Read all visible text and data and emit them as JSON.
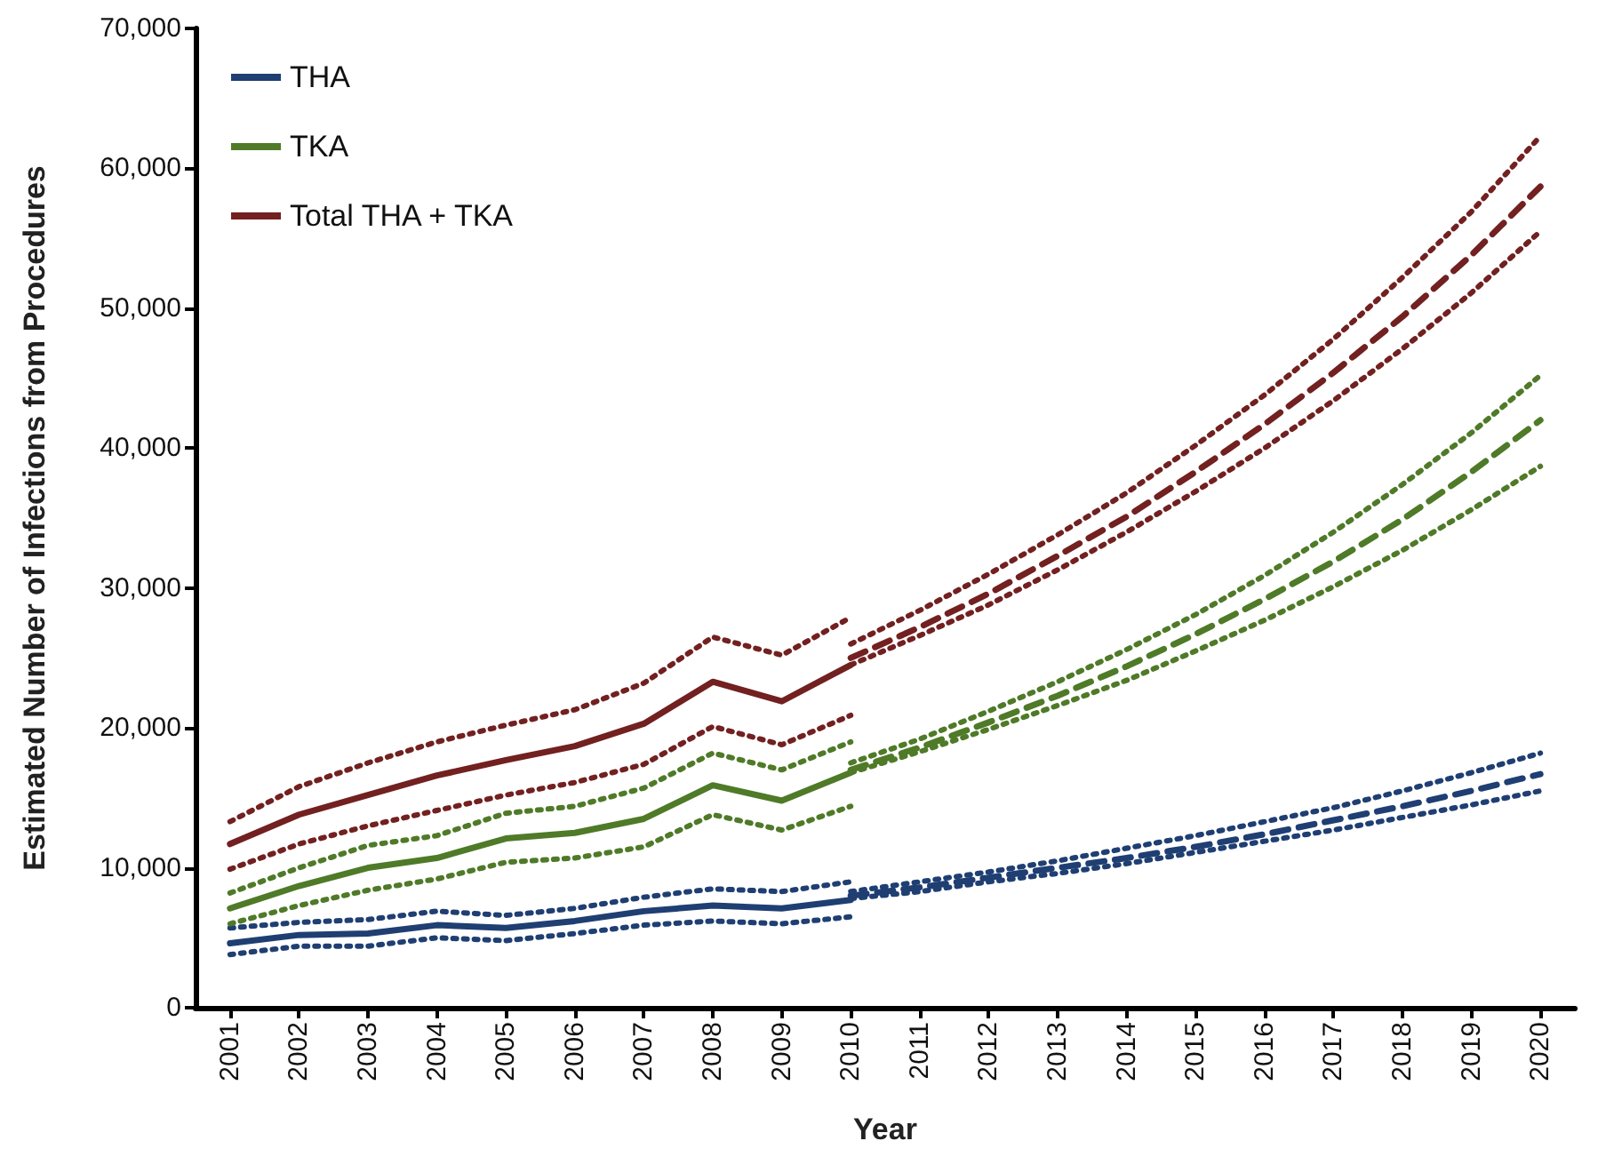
{
  "chart_data": {
    "type": "line",
    "xlabel": "Year",
    "ylabel": "Estimated Number of Infections from Procedures",
    "categories": [
      "2001",
      "2002",
      "2003",
      "2004",
      "2005",
      "2006",
      "2007",
      "2008",
      "2009",
      "2010",
      "2011",
      "2012",
      "2013",
      "2014",
      "2015",
      "2016",
      "2017",
      "2018",
      "2019",
      "2020"
    ],
    "ylim": [
      0,
      70000
    ],
    "yticks": [
      {
        "value": 0,
        "label": "0"
      },
      {
        "value": 10000,
        "label": "10,000"
      },
      {
        "value": 20000,
        "label": "20,000"
      },
      {
        "value": 30000,
        "label": "30,000"
      },
      {
        "value": 40000,
        "label": "40,000"
      },
      {
        "value": 50000,
        "label": "50,000"
      },
      {
        "value": 60000,
        "label": "60,000"
      },
      {
        "value": 70000,
        "label": "70,000"
      }
    ],
    "grid": false,
    "legend": "top left",
    "marker": "none",
    "series": [
      {
        "name": "THA",
        "color": "#1f3f73",
        "line_style": "solid",
        "values": [
          4600,
          5200,
          5300,
          5900,
          5700,
          6200,
          6900,
          7300,
          7100,
          7700,
          null,
          null,
          null,
          null,
          null,
          null,
          null,
          null,
          null,
          null
        ]
      },
      {
        "name": "TKA",
        "color": "#4f7a28",
        "line_style": "solid",
        "values": [
          7100,
          8700,
          10000,
          10700,
          12100,
          12500,
          13500,
          15900,
          14800,
          16800,
          null,
          null,
          null,
          null,
          null,
          null,
          null,
          null,
          null,
          null
        ]
      },
      {
        "name": "Total THA + TKA",
        "color": "#722020",
        "line_style": "solid",
        "values": [
          11700,
          13800,
          15200,
          16600,
          17700,
          18700,
          20300,
          23300,
          21900,
          24500,
          null,
          null,
          null,
          null,
          null,
          null,
          null,
          null,
          null,
          null
        ]
      },
      {
        "color": "#1f3f73",
        "line_style": "dotted",
        "values": [
          5700,
          6100,
          6300,
          6900,
          6600,
          7100,
          7900,
          8500,
          8300,
          9000,
          null,
          null,
          null,
          null,
          null,
          null,
          null,
          null,
          null,
          null
        ]
      },
      {
        "color": "#1f3f73",
        "line_style": "dotted",
        "values": [
          3800,
          4400,
          4400,
          5000,
          4800,
          5300,
          5900,
          6200,
          6000,
          6500,
          null,
          null,
          null,
          null,
          null,
          null,
          null,
          null,
          null,
          null
        ]
      },
      {
        "color": "#4f7a28",
        "line_style": "dotted",
        "values": [
          8200,
          10000,
          11600,
          12300,
          13900,
          14400,
          15700,
          18200,
          17000,
          19000,
          null,
          null,
          null,
          null,
          null,
          null,
          null,
          null,
          null,
          null
        ]
      },
      {
        "color": "#4f7a28",
        "line_style": "dotted",
        "values": [
          6000,
          7300,
          8400,
          9200,
          10400,
          10700,
          11500,
          13800,
          12700,
          14400,
          null,
          null,
          null,
          null,
          null,
          null,
          null,
          null,
          null,
          null
        ]
      },
      {
        "color": "#722020",
        "line_style": "dotted",
        "values": [
          13300,
          15800,
          17500,
          19000,
          20200,
          21300,
          23200,
          26500,
          25200,
          27900,
          null,
          null,
          null,
          null,
          null,
          null,
          null,
          null,
          null,
          null
        ]
      },
      {
        "color": "#722020",
        "line_style": "dotted",
        "values": [
          9900,
          11700,
          13000,
          14100,
          15200,
          16100,
          17400,
          20100,
          18800,
          20900,
          null,
          null,
          null,
          null,
          null,
          null,
          null,
          null,
          null,
          null
        ]
      },
      {
        "color": "#1f3f73",
        "line_style": "dashed",
        "values": [
          null,
          null,
          null,
          null,
          null,
          null,
          null,
          null,
          null,
          8000,
          8600,
          9300,
          10000,
          10700,
          11500,
          12400,
          13400,
          14400,
          15500,
          16700
        ]
      },
      {
        "color": "#1f3f73",
        "line_style": "dotted",
        "values": [
          null,
          null,
          null,
          null,
          null,
          null,
          null,
          null,
          null,
          8300,
          9000,
          9700,
          10500,
          11400,
          12300,
          13300,
          14300,
          15500,
          16800,
          18200
        ]
      },
      {
        "color": "#1f3f73",
        "line_style": "dotted",
        "values": [
          null,
          null,
          null,
          null,
          null,
          null,
          null,
          null,
          null,
          7800,
          8300,
          9000,
          9600,
          10300,
          11100,
          11900,
          12700,
          13600,
          14500,
          15500
        ]
      },
      {
        "color": "#4f7a28",
        "line_style": "dashed",
        "values": [
          null,
          null,
          null,
          null,
          null,
          null,
          null,
          null,
          null,
          17000,
          18600,
          20400,
          22300,
          24400,
          26700,
          29200,
          31900,
          34900,
          38300,
          42000
        ]
      },
      {
        "color": "#4f7a28",
        "line_style": "dotted",
        "values": [
          null,
          null,
          null,
          null,
          null,
          null,
          null,
          null,
          null,
          17500,
          19200,
          21200,
          23300,
          25600,
          28100,
          30900,
          34000,
          37400,
          41100,
          45200
        ]
      },
      {
        "color": "#4f7a28",
        "line_style": "dotted",
        "values": [
          null,
          null,
          null,
          null,
          null,
          null,
          null,
          null,
          null,
          16800,
          18300,
          19900,
          21600,
          23400,
          25500,
          27700,
          30100,
          32700,
          35600,
          38700
        ]
      },
      {
        "color": "#722020",
        "line_style": "dashed",
        "values": [
          null,
          null,
          null,
          null,
          null,
          null,
          null,
          null,
          null,
          25000,
          27200,
          29600,
          32300,
          35100,
          38300,
          41700,
          45400,
          49400,
          53800,
          58700
        ]
      },
      {
        "color": "#722020",
        "line_style": "dotted",
        "values": [
          null,
          null,
          null,
          null,
          null,
          null,
          null,
          null,
          null,
          26000,
          28400,
          31000,
          33800,
          36800,
          40200,
          43800,
          47800,
          52200,
          56900,
          62300
        ]
      },
      {
        "color": "#722020",
        "line_style": "dotted",
        "values": [
          null,
          null,
          null,
          null,
          null,
          null,
          null,
          null,
          null,
          24500,
          26600,
          28800,
          31300,
          34000,
          36900,
          40000,
          43400,
          47100,
          51100,
          55500
        ]
      }
    ]
  }
}
